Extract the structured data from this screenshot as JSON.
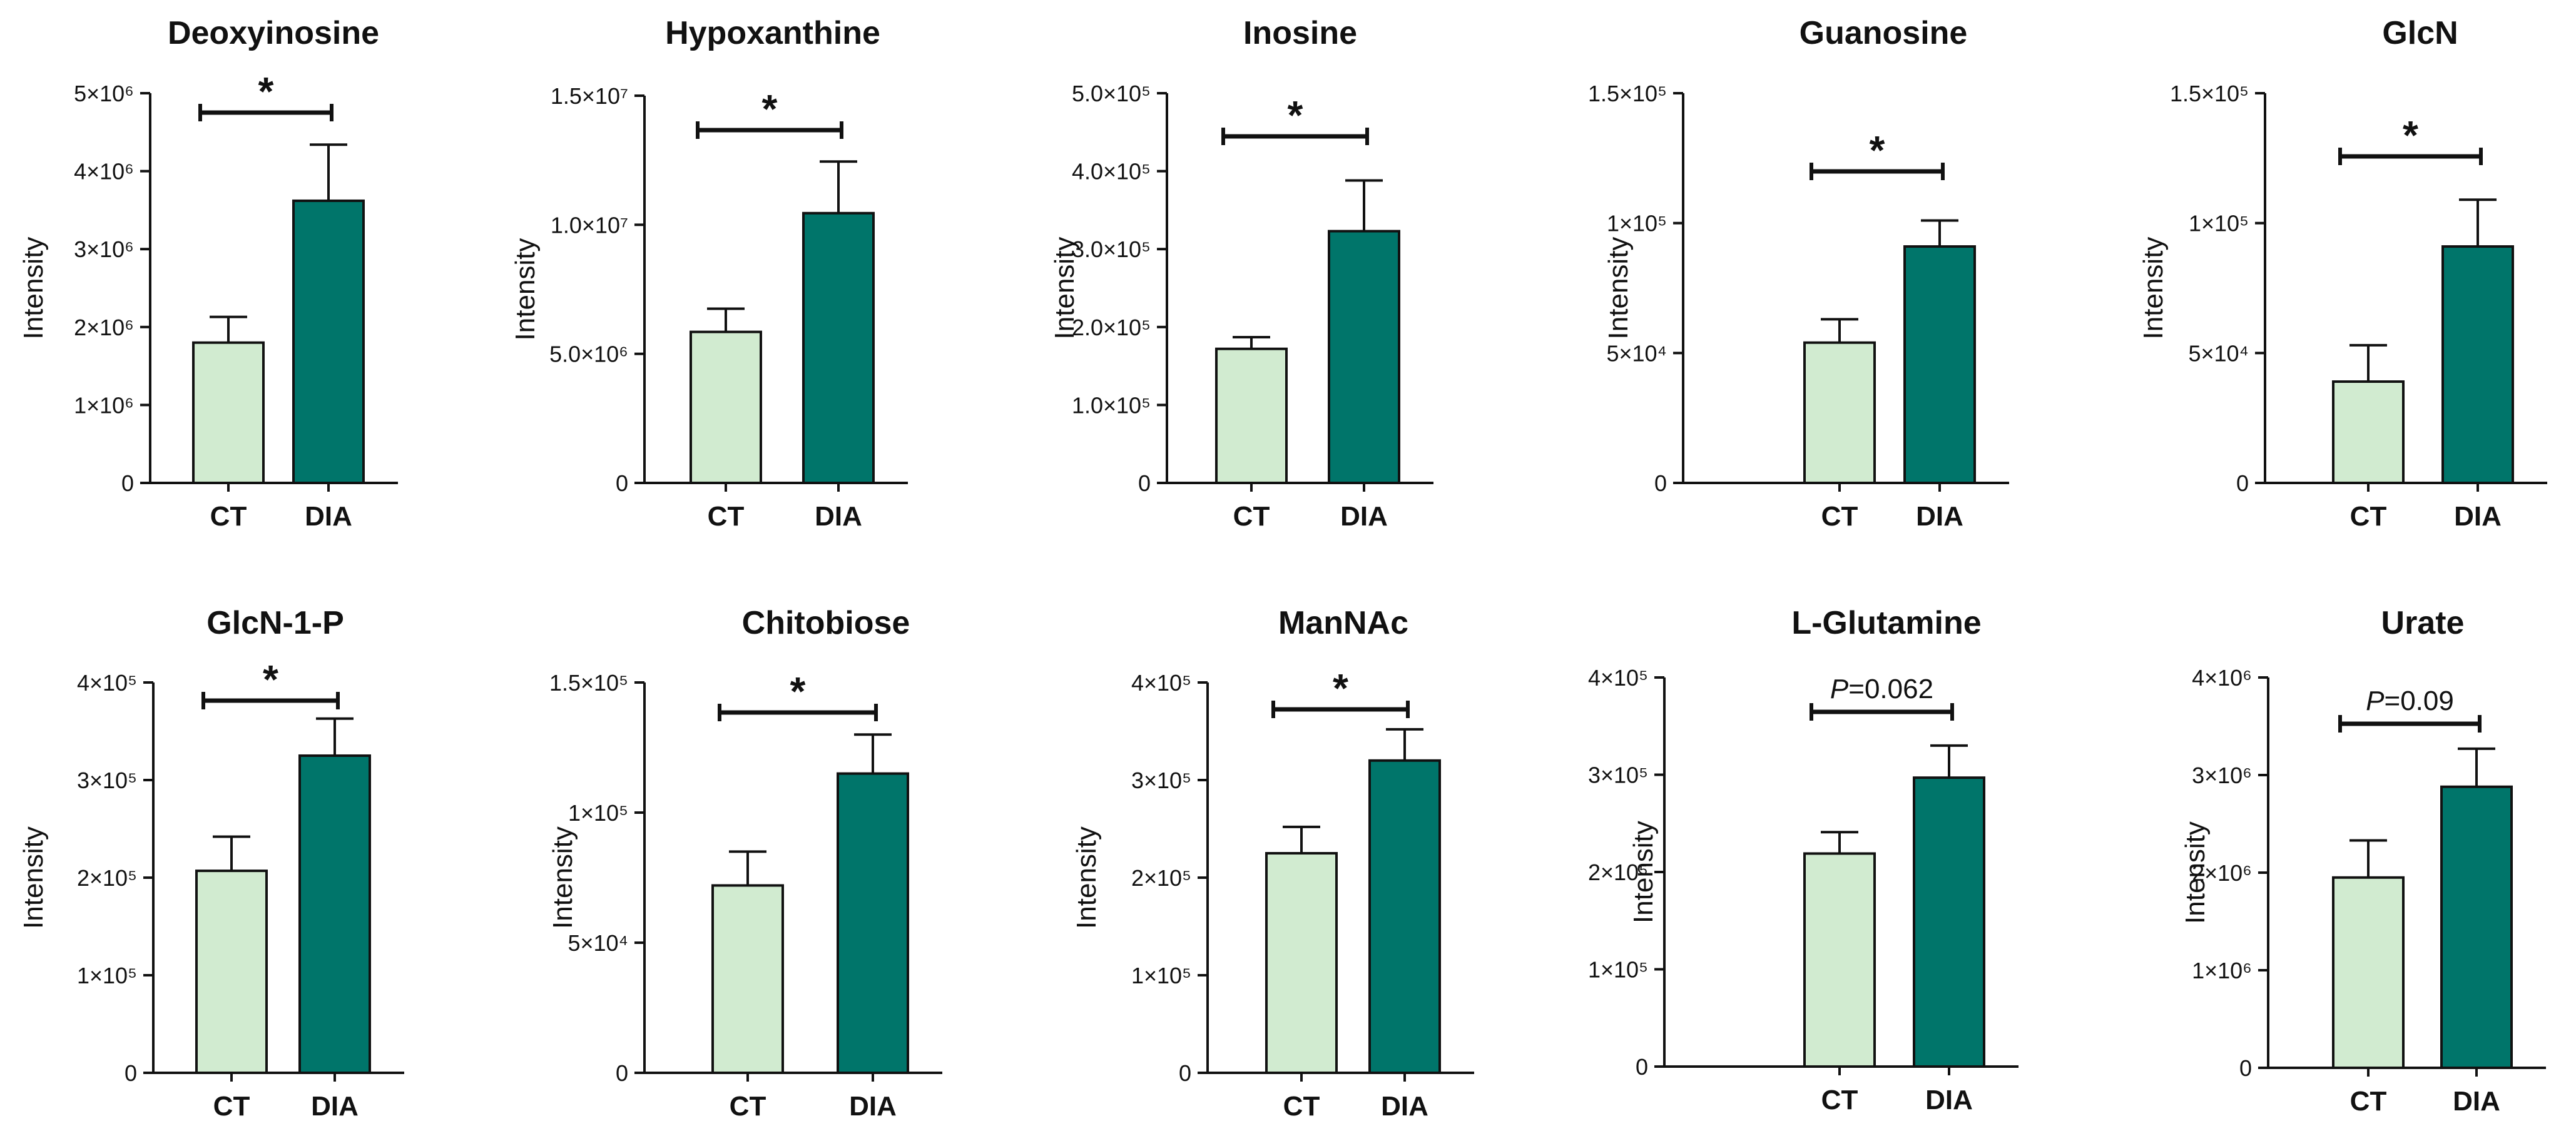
{
  "figure": {
    "ylabel": "Intensity"
  },
  "colors": {
    "CT": "#d1ebd0",
    "DIA": "#00756a",
    "stroke": "#111111"
  },
  "chart_data": [
    {
      "type": "bar",
      "title": "Deoxyinosine",
      "ylabel": "Intensity",
      "categories": [
        "CT",
        "DIA"
      ],
      "values": [
        1800000,
        3620000
      ],
      "errors": [
        330000,
        720000
      ],
      "ylim": [
        0,
        5000000
      ],
      "yticks": [
        "0",
        "1×10⁶",
        "2×10⁶",
        "3×10⁶",
        "4×10⁶",
        "5×10⁶"
      ],
      "significance": "*"
    },
    {
      "type": "bar",
      "title": "Hypoxanthine",
      "ylabel": "Intensity",
      "categories": [
        "CT",
        "DIA"
      ],
      "values": [
        5850000,
        10450000
      ],
      "errors": [
        900000,
        2000000
      ],
      "ylim": [
        0,
        15000000
      ],
      "yticks": [
        "0",
        "5.0×10⁶",
        "1.0×10⁷",
        "1.5×10⁷"
      ],
      "significance": "*"
    },
    {
      "type": "bar",
      "title": "Inosine",
      "ylabel": "Intensity",
      "categories": [
        "CT",
        "DIA"
      ],
      "values": [
        172000,
        323000
      ],
      "errors": [
        15000,
        65000
      ],
      "ylim": [
        0,
        500000
      ],
      "yticks": [
        "0",
        "1.0×10⁵",
        "2.0×10⁵",
        "3.0×10⁵",
        "4.0×10⁵",
        "5.0×10⁵"
      ],
      "significance": "*"
    },
    {
      "type": "bar",
      "title": "Guanosine",
      "ylabel": "Intensity",
      "categories": [
        "CT",
        "DIA"
      ],
      "values": [
        54000,
        91000
      ],
      "errors": [
        9000,
        10000
      ],
      "ylim": [
        0,
        150000
      ],
      "yticks": [
        "0",
        "5×10⁴",
        "1×10⁵",
        "1.5×10⁵"
      ],
      "significance": "*"
    },
    {
      "type": "bar",
      "title": "GlcN",
      "ylabel": "Intensity",
      "categories": [
        "CT",
        "DIA"
      ],
      "values": [
        39000,
        91000
      ],
      "errors": [
        14000,
        18000
      ],
      "ylim": [
        0,
        150000
      ],
      "yticks": [
        "0",
        "5×10⁴",
        "1×10⁵",
        "1.5×10⁵"
      ],
      "significance": "*"
    },
    {
      "type": "bar",
      "title": "GlcN-1-P",
      "ylabel": "Intensity",
      "categories": [
        "CT",
        "DIA"
      ],
      "values": [
        207000,
        325000
      ],
      "errors": [
        35000,
        38000
      ],
      "ylim": [
        0,
        400000
      ],
      "yticks": [
        "0",
        "1×10⁵",
        "2×10⁵",
        "3×10⁵",
        "4×10⁵"
      ],
      "significance": "*"
    },
    {
      "type": "bar",
      "title": "Chitobiose",
      "ylabel": "Intensity",
      "categories": [
        "CT",
        "DIA"
      ],
      "values": [
        72000,
        115000
      ],
      "errors": [
        13000,
        15000
      ],
      "ylim": [
        0,
        150000
      ],
      "yticks": [
        "0",
        "5×10⁴",
        "1×10⁵",
        "1.5×10⁵"
      ],
      "significance": "*"
    },
    {
      "type": "bar",
      "title": "ManNAc",
      "ylabel": "Intensity",
      "categories": [
        "CT",
        "DIA"
      ],
      "values": [
        225000,
        320000
      ],
      "errors": [
        27000,
        32000
      ],
      "ylim": [
        0,
        400000
      ],
      "yticks": [
        "0",
        "1×10⁵",
        "2×10⁵",
        "3×10⁵",
        "4×10⁵"
      ],
      "significance": "*"
    },
    {
      "type": "bar",
      "title": "L-Glutamine",
      "ylabel": "Intensity",
      "categories": [
        "CT",
        "DIA"
      ],
      "values": [
        219000,
        297000
      ],
      "errors": [
        22000,
        33000
      ],
      "ylim": [
        0,
        400000
      ],
      "yticks": [
        "0",
        "1×10⁵",
        "2×10⁵",
        "3×10⁵",
        "4×10⁵"
      ],
      "significance": "",
      "p_label": "P",
      "p_value": "=0.062"
    },
    {
      "type": "bar",
      "title": "Urate",
      "ylabel": "Intensity",
      "categories": [
        "CT",
        "DIA"
      ],
      "values": [
        1950000,
        2880000
      ],
      "errors": [
        380000,
        390000
      ],
      "ylim": [
        0,
        4000000
      ],
      "yticks": [
        "0",
        "1×10⁶",
        "2×10⁶",
        "3×10⁶",
        "4×10⁶"
      ],
      "significance": "",
      "p_label": "P",
      "p_value": "=0.09"
    }
  ]
}
